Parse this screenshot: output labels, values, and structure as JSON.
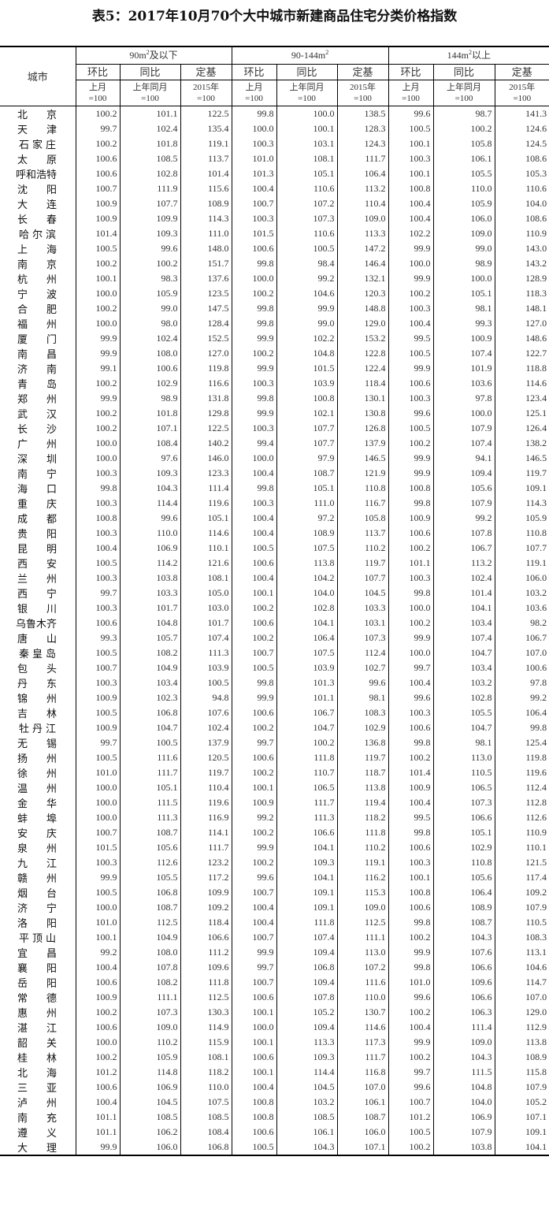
{
  "title": "表5：2017年10月70个大中城市新建商品住宅分类价格指数",
  "header": {
    "city": "城市",
    "groups": [
      {
        "pre": "90m",
        "sup": "2",
        "post": "及以下"
      },
      {
        "pre": "90-144m",
        "sup": "2",
        "post": ""
      },
      {
        "pre": "144m",
        "sup": "2",
        "post": "以上"
      }
    ],
    "sub": [
      "环比",
      "同比",
      "定基"
    ],
    "base": [
      [
        "上月",
        "=100"
      ],
      [
        "上年同月",
        "=100"
      ],
      [
        "2015年",
        "=100"
      ]
    ]
  },
  "rows": [
    [
      "北京",
      "100.2",
      "101.1",
      "122.5",
      "99.8",
      "100.0",
      "138.5",
      "99.6",
      "98.7",
      "141.3"
    ],
    [
      "天津",
      "99.7",
      "102.4",
      "135.4",
      "100.0",
      "100.1",
      "128.3",
      "100.5",
      "100.2",
      "124.6"
    ],
    [
      "石家庄",
      "100.2",
      "101.8",
      "119.1",
      "100.3",
      "103.1",
      "124.3",
      "100.1",
      "105.8",
      "124.5"
    ],
    [
      "太原",
      "100.6",
      "108.5",
      "113.7",
      "101.0",
      "108.1",
      "111.7",
      "100.3",
      "106.1",
      "108.6"
    ],
    [
      "呼和浩特",
      "100.6",
      "102.8",
      "101.4",
      "101.3",
      "105.1",
      "106.4",
      "100.1",
      "105.5",
      "105.3"
    ],
    [
      "沈阳",
      "100.7",
      "111.9",
      "115.6",
      "100.4",
      "110.6",
      "113.2",
      "100.8",
      "110.0",
      "110.6"
    ],
    [
      "大连",
      "100.9",
      "107.7",
      "108.9",
      "100.7",
      "107.2",
      "110.4",
      "100.4",
      "105.9",
      "104.0"
    ],
    [
      "长春",
      "100.9",
      "109.9",
      "114.3",
      "100.3",
      "107.3",
      "109.0",
      "100.4",
      "106.0",
      "108.6"
    ],
    [
      "哈尔滨",
      "101.4",
      "109.3",
      "111.0",
      "101.5",
      "110.6",
      "113.3",
      "102.2",
      "109.0",
      "110.9"
    ],
    [
      "上海",
      "100.5",
      "99.6",
      "148.0",
      "100.6",
      "100.5",
      "147.2",
      "99.9",
      "99.0",
      "143.0"
    ],
    [
      "南京",
      "100.2",
      "100.2",
      "151.7",
      "99.8",
      "98.4",
      "146.4",
      "100.0",
      "98.9",
      "143.2"
    ],
    [
      "杭州",
      "100.1",
      "98.3",
      "137.6",
      "100.0",
      "99.2",
      "132.1",
      "99.9",
      "100.0",
      "128.9"
    ],
    [
      "宁波",
      "100.0",
      "105.9",
      "123.5",
      "100.2",
      "104.6",
      "120.3",
      "100.2",
      "105.1",
      "118.3"
    ],
    [
      "合肥",
      "100.2",
      "99.0",
      "147.5",
      "99.8",
      "99.9",
      "148.8",
      "100.3",
      "98.1",
      "148.1"
    ],
    [
      "福州",
      "100.0",
      "98.0",
      "128.4",
      "99.8",
      "99.0",
      "129.0",
      "100.4",
      "99.3",
      "127.0"
    ],
    [
      "厦门",
      "99.9",
      "102.4",
      "152.5",
      "99.9",
      "102.2",
      "153.2",
      "99.5",
      "100.9",
      "148.6"
    ],
    [
      "南昌",
      "99.9",
      "108.0",
      "127.0",
      "100.2",
      "104.8",
      "122.8",
      "100.5",
      "107.4",
      "122.7"
    ],
    [
      "济南",
      "99.1",
      "100.6",
      "119.8",
      "99.9",
      "101.5",
      "122.4",
      "99.9",
      "101.9",
      "118.8"
    ],
    [
      "青岛",
      "100.2",
      "102.9",
      "116.6",
      "100.3",
      "103.9",
      "118.4",
      "100.6",
      "103.6",
      "114.6"
    ],
    [
      "郑州",
      "99.9",
      "98.9",
      "131.8",
      "99.8",
      "100.8",
      "130.1",
      "100.3",
      "97.8",
      "123.4"
    ],
    [
      "武汉",
      "100.2",
      "101.8",
      "129.8",
      "99.9",
      "102.1",
      "130.8",
      "99.6",
      "100.0",
      "125.1"
    ],
    [
      "长沙",
      "100.2",
      "107.1",
      "122.5",
      "100.3",
      "107.7",
      "126.8",
      "100.5",
      "107.9",
      "126.4"
    ],
    [
      "广州",
      "100.0",
      "108.4",
      "140.2",
      "99.4",
      "107.7",
      "137.9",
      "100.2",
      "107.4",
      "138.2"
    ],
    [
      "深圳",
      "100.0",
      "97.6",
      "146.0",
      "100.0",
      "97.9",
      "146.5",
      "99.9",
      "94.1",
      "146.5"
    ],
    [
      "南宁",
      "100.3",
      "109.3",
      "123.3",
      "100.4",
      "108.7",
      "121.9",
      "99.9",
      "109.4",
      "119.7"
    ],
    [
      "海口",
      "99.8",
      "104.3",
      "111.4",
      "99.8",
      "105.1",
      "110.8",
      "100.8",
      "105.6",
      "109.1"
    ],
    [
      "重庆",
      "100.3",
      "114.4",
      "119.6",
      "100.3",
      "111.0",
      "116.7",
      "99.8",
      "107.9",
      "114.3"
    ],
    [
      "成都",
      "100.8",
      "99.6",
      "105.1",
      "100.4",
      "97.2",
      "105.8",
      "100.9",
      "99.2",
      "105.9"
    ],
    [
      "贵阳",
      "100.3",
      "110.0",
      "114.6",
      "100.4",
      "108.9",
      "113.7",
      "100.6",
      "107.8",
      "110.8"
    ],
    [
      "昆明",
      "100.4",
      "106.9",
      "110.1",
      "100.5",
      "107.5",
      "110.2",
      "100.2",
      "106.7",
      "107.7"
    ],
    [
      "西安",
      "100.5",
      "114.2",
      "121.6",
      "100.6",
      "113.8",
      "119.7",
      "101.1",
      "113.2",
      "119.1"
    ],
    [
      "兰州",
      "100.3",
      "103.8",
      "108.1",
      "100.4",
      "104.2",
      "107.7",
      "100.3",
      "102.4",
      "106.0"
    ],
    [
      "西宁",
      "99.7",
      "103.3",
      "105.0",
      "100.1",
      "104.0",
      "104.5",
      "99.8",
      "101.4",
      "103.2"
    ],
    [
      "银川",
      "100.3",
      "101.7",
      "103.0",
      "100.2",
      "102.8",
      "103.3",
      "100.0",
      "104.1",
      "103.6"
    ],
    [
      "乌鲁木齐",
      "100.6",
      "104.8",
      "101.7",
      "100.6",
      "104.1",
      "103.1",
      "100.2",
      "103.4",
      "98.2"
    ],
    [
      "唐山",
      "99.3",
      "105.7",
      "107.4",
      "100.2",
      "106.4",
      "107.3",
      "99.9",
      "107.4",
      "106.7"
    ],
    [
      "秦皇岛",
      "100.5",
      "108.2",
      "111.3",
      "100.7",
      "107.5",
      "112.4",
      "100.0",
      "104.7",
      "107.0"
    ],
    [
      "包头",
      "100.7",
      "104.9",
      "103.9",
      "100.5",
      "103.9",
      "102.7",
      "99.7",
      "103.4",
      "100.6"
    ],
    [
      "丹东",
      "100.3",
      "103.4",
      "100.5",
      "99.8",
      "101.3",
      "99.6",
      "100.4",
      "103.2",
      "97.8"
    ],
    [
      "锦州",
      "100.9",
      "102.3",
      "94.8",
      "99.9",
      "101.1",
      "98.1",
      "99.6",
      "102.8",
      "99.2"
    ],
    [
      "吉林",
      "100.5",
      "106.8",
      "107.6",
      "100.6",
      "106.7",
      "108.3",
      "100.3",
      "105.5",
      "106.4"
    ],
    [
      "牡丹江",
      "100.9",
      "104.7",
      "102.4",
      "100.2",
      "104.7",
      "102.9",
      "100.6",
      "104.7",
      "99.8"
    ],
    [
      "无锡",
      "99.7",
      "100.5",
      "137.9",
      "99.7",
      "100.2",
      "136.8",
      "99.8",
      "98.1",
      "125.4"
    ],
    [
      "扬州",
      "100.5",
      "111.6",
      "120.5",
      "100.6",
      "111.8",
      "119.7",
      "100.2",
      "113.0",
      "119.8"
    ],
    [
      "徐州",
      "101.0",
      "111.7",
      "119.7",
      "100.2",
      "110.7",
      "118.7",
      "101.4",
      "110.5",
      "119.6"
    ],
    [
      "温州",
      "100.0",
      "105.1",
      "110.4",
      "100.1",
      "106.5",
      "113.8",
      "100.9",
      "106.5",
      "112.4"
    ],
    [
      "金华",
      "100.0",
      "111.5",
      "119.6",
      "100.9",
      "111.7",
      "119.4",
      "100.4",
      "107.3",
      "112.8"
    ],
    [
      "蚌埠",
      "100.0",
      "111.3",
      "116.9",
      "99.2",
      "111.3",
      "118.2",
      "99.5",
      "106.6",
      "112.6"
    ],
    [
      "安庆",
      "100.7",
      "108.7",
      "114.1",
      "100.2",
      "106.6",
      "111.8",
      "99.8",
      "105.1",
      "110.9"
    ],
    [
      "泉州",
      "101.5",
      "105.6",
      "111.7",
      "99.9",
      "104.1",
      "110.2",
      "100.6",
      "102.9",
      "110.1"
    ],
    [
      "九江",
      "100.3",
      "112.6",
      "123.2",
      "100.2",
      "109.3",
      "119.1",
      "100.3",
      "110.8",
      "121.5"
    ],
    [
      "赣州",
      "99.9",
      "105.5",
      "117.2",
      "99.6",
      "104.1",
      "116.2",
      "100.1",
      "105.6",
      "117.4"
    ],
    [
      "烟台",
      "100.5",
      "106.8",
      "109.9",
      "100.7",
      "109.1",
      "115.3",
      "100.8",
      "106.4",
      "109.2"
    ],
    [
      "济宁",
      "100.0",
      "108.7",
      "109.2",
      "100.4",
      "109.1",
      "109.0",
      "100.6",
      "108.9",
      "107.9"
    ],
    [
      "洛阳",
      "101.0",
      "112.5",
      "118.4",
      "100.4",
      "111.8",
      "112.5",
      "99.8",
      "108.7",
      "110.5"
    ],
    [
      "平顶山",
      "100.1",
      "104.9",
      "106.6",
      "100.7",
      "107.4",
      "111.1",
      "100.2",
      "104.3",
      "108.3"
    ],
    [
      "宜昌",
      "99.2",
      "108.0",
      "111.2",
      "99.9",
      "109.4",
      "113.0",
      "99.9",
      "107.6",
      "113.1"
    ],
    [
      "襄阳",
      "100.4",
      "107.8",
      "109.6",
      "99.7",
      "106.8",
      "107.2",
      "99.8",
      "106.6",
      "104.6"
    ],
    [
      "岳阳",
      "100.6",
      "108.2",
      "111.8",
      "100.7",
      "109.4",
      "111.6",
      "101.0",
      "109.6",
      "114.7"
    ],
    [
      "常德",
      "100.9",
      "111.1",
      "112.5",
      "100.6",
      "107.8",
      "110.0",
      "99.6",
      "106.6",
      "107.0"
    ],
    [
      "惠州",
      "100.2",
      "107.3",
      "130.3",
      "100.1",
      "105.2",
      "130.7",
      "100.2",
      "106.3",
      "129.0"
    ],
    [
      "湛江",
      "100.6",
      "109.0",
      "114.9",
      "100.0",
      "109.4",
      "114.6",
      "100.4",
      "111.4",
      "112.9"
    ],
    [
      "韶关",
      "100.0",
      "110.2",
      "115.9",
      "100.1",
      "113.3",
      "117.3",
      "99.9",
      "109.0",
      "113.8"
    ],
    [
      "桂林",
      "100.2",
      "105.9",
      "108.1",
      "100.6",
      "109.3",
      "111.7",
      "100.2",
      "104.3",
      "108.9"
    ],
    [
      "北海",
      "101.2",
      "114.8",
      "118.2",
      "100.1",
      "114.4",
      "116.8",
      "99.7",
      "111.5",
      "115.8"
    ],
    [
      "三亚",
      "100.6",
      "106.9",
      "110.0",
      "100.4",
      "104.5",
      "107.0",
      "99.6",
      "104.8",
      "107.9"
    ],
    [
      "泸州",
      "100.4",
      "104.5",
      "107.5",
      "100.8",
      "103.2",
      "106.1",
      "100.7",
      "104.0",
      "105.2"
    ],
    [
      "南充",
      "101.1",
      "108.5",
      "108.5",
      "100.8",
      "108.5",
      "108.7",
      "101.2",
      "106.9",
      "107.1"
    ],
    [
      "遵义",
      "101.1",
      "106.2",
      "108.4",
      "100.6",
      "106.1",
      "106.0",
      "100.5",
      "107.9",
      "109.1"
    ],
    [
      "大理",
      "99.9",
      "106.0",
      "106.8",
      "100.5",
      "104.3",
      "107.1",
      "100.2",
      "103.8",
      "104.1"
    ]
  ]
}
